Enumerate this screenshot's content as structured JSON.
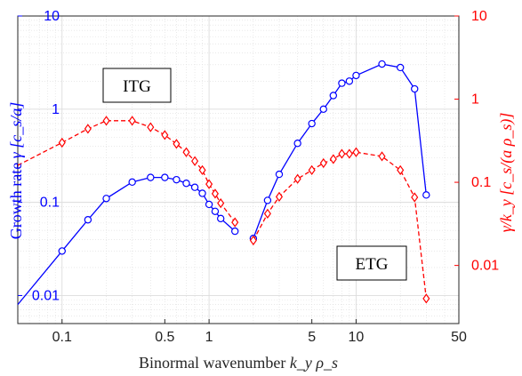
{
  "chart_data": {
    "type": "line",
    "x_scale": "log",
    "y_scale": "log",
    "xlim": [
      0.05,
      50
    ],
    "ylim": [
      0.005,
      10
    ],
    "ylim_right": [
      0.002,
      10
    ],
    "grid": true,
    "minor_grid": true,
    "xlabel_text": "Binormal wavenumber ",
    "xlabel_math": "k_y ρ_s",
    "ylabel_left_text": "Growth rate ",
    "ylabel_left_math": "γ [c_s/a]",
    "ylabel_right_math": "γ/k_y [c_s/(a ρ_s)]",
    "x_ticks": [
      0.1,
      0.5,
      1,
      5,
      10,
      50
    ],
    "x_tick_labels": [
      "0.1",
      "0.5",
      "1",
      "5",
      "10",
      "50"
    ],
    "y_left_ticks": [
      0.01,
      0.1,
      1,
      10
    ],
    "y_left_tick_labels": [
      "0.01",
      "0.1",
      "1",
      "10"
    ],
    "y_right_ticks": [
      0.01,
      0.1,
      1,
      10
    ],
    "y_right_tick_labels": [
      "0.01",
      "0.1",
      "1",
      "10"
    ],
    "colors": {
      "left_axis": "#0000ff",
      "right_axis": "#ff0000",
      "grid": "#dcdcdc"
    },
    "series": [
      {
        "axis": "left",
        "style": "solid",
        "marker": "circle",
        "color": "#0000ff",
        "segments": [
          {
            "x": [
              0.05,
              0.1,
              0.15,
              0.2,
              0.3,
              0.4,
              0.5,
              0.6,
              0.7,
              0.8,
              0.9,
              1.0,
              1.1,
              1.2,
              1.5
            ],
            "y": [
              0.008,
              0.03,
              0.065,
              0.11,
              0.165,
              0.185,
              0.185,
              0.175,
              0.16,
              0.145,
              0.125,
              0.095,
              0.08,
              0.067,
              0.049
            ],
            "marker_from": 1
          },
          {
            "x": [
              2,
              2.5,
              3,
              4,
              5,
              6,
              7,
              8,
              9,
              10,
              15,
              20,
              25,
              30
            ],
            "y": [
              0.041,
              0.105,
              0.2,
              0.43,
              0.7,
              1.0,
              1.4,
              1.9,
              2.0,
              2.3,
              3.05,
              2.8,
              1.65,
              0.12
            ],
            "marker_from": 0
          }
        ]
      },
      {
        "axis": "right",
        "style": "dashed",
        "marker": "diamond",
        "color": "#ff0000",
        "segments": [
          {
            "x": [
              0.05,
              0.1,
              0.15,
              0.2,
              0.3,
              0.4,
              0.5,
              0.6,
              0.7,
              0.8,
              0.9,
              1.0,
              1.1,
              1.2,
              1.5
            ],
            "y": [
              0.16,
              0.3,
              0.44,
              0.55,
              0.55,
              0.46,
              0.37,
              0.29,
              0.23,
              0.18,
              0.14,
              0.095,
              0.073,
              0.056,
              0.033
            ],
            "marker_from": 1
          },
          {
            "x": [
              2,
              2.5,
              3,
              4,
              5,
              6,
              7,
              8,
              9,
              10,
              15,
              20,
              25,
              30
            ],
            "y": [
              0.02,
              0.042,
              0.067,
              0.11,
              0.14,
              0.17,
              0.19,
              0.22,
              0.22,
              0.23,
              0.205,
              0.14,
              0.066,
              0.004
            ],
            "marker_from": 0
          }
        ]
      }
    ],
    "annotations": [
      {
        "text": "ITG"
      },
      {
        "text": "ETG"
      }
    ]
  }
}
